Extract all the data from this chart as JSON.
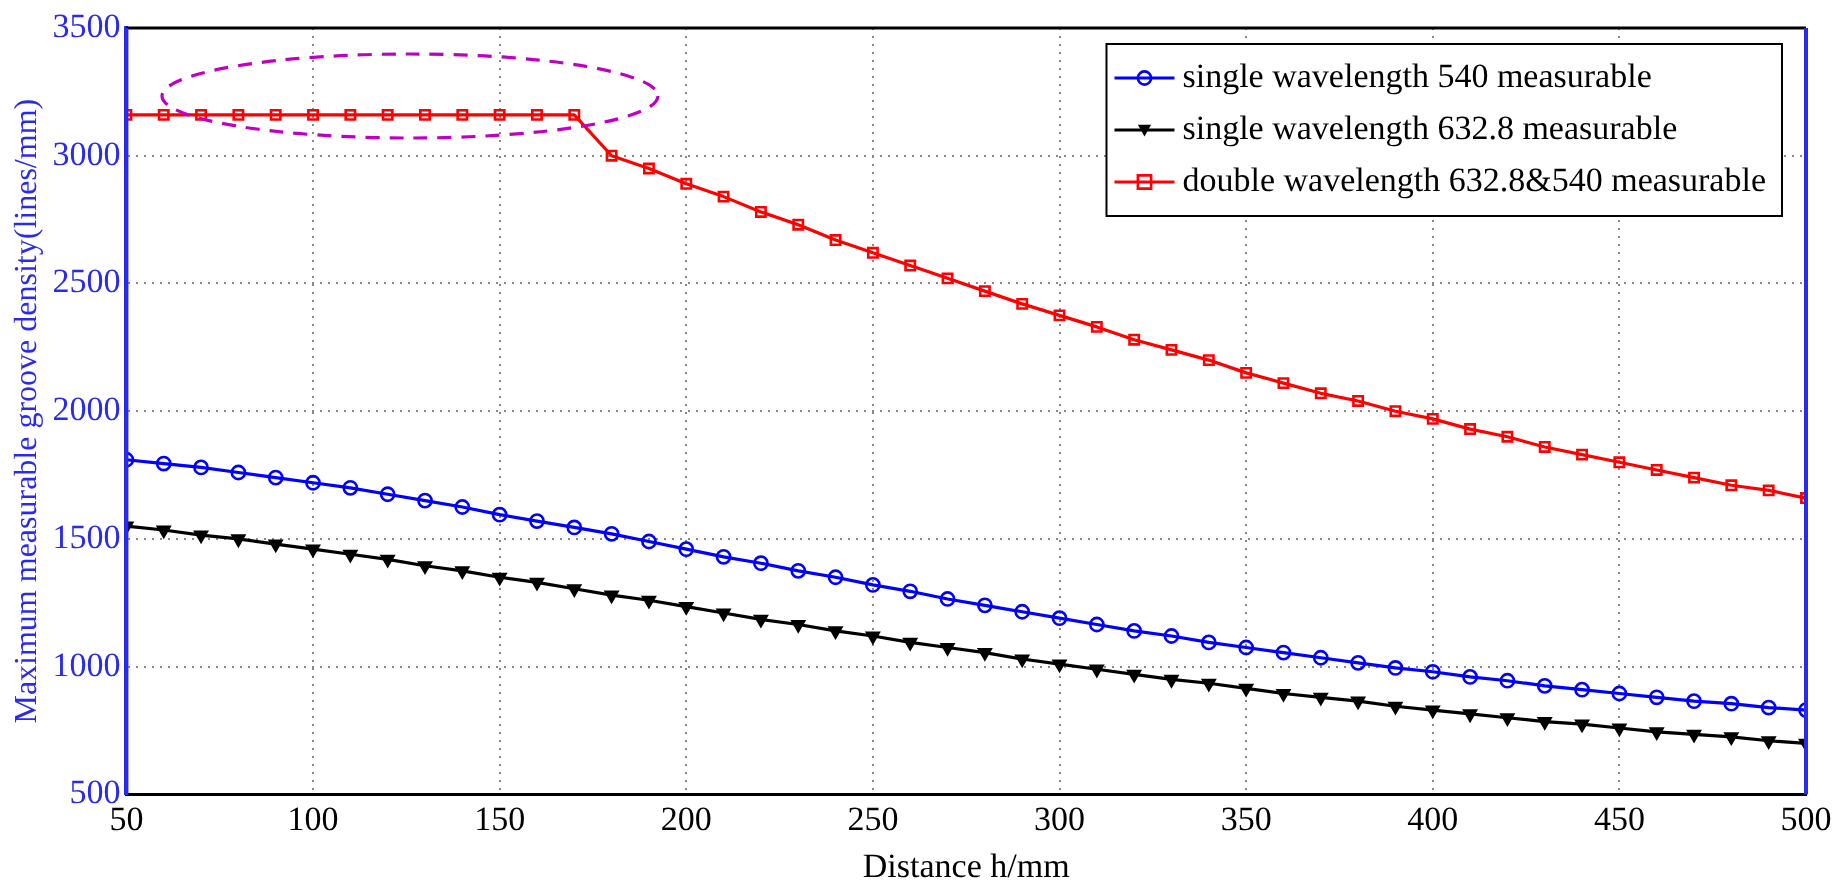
{
  "chart_data": {
    "type": "line",
    "xlabel": "Distance h/mm",
    "ylabel": "Maximum measurable groove density(lines/mm)",
    "x": [
      50,
      60,
      70,
      80,
      90,
      100,
      110,
      120,
      130,
      140,
      150,
      160,
      170,
      180,
      190,
      200,
      210,
      220,
      230,
      240,
      250,
      260,
      270,
      280,
      290,
      300,
      310,
      320,
      330,
      340,
      350,
      360,
      370,
      380,
      390,
      400,
      410,
      420,
      430,
      440,
      450,
      460,
      470,
      480,
      490,
      500
    ],
    "xlim": [
      50,
      500
    ],
    "xticks": [
      50,
      100,
      150,
      200,
      250,
      300,
      350,
      400,
      450,
      500
    ],
    "ylim": [
      500,
      3500
    ],
    "yticks": [
      500,
      1000,
      1500,
      2000,
      2500,
      3000,
      3500
    ],
    "grid": true,
    "legend": "top right",
    "line_style": "solid",
    "series": [
      {
        "name": "single wavelength 540 measurable",
        "color": "#0000ff",
        "marker": "circle",
        "values": [
          1810,
          1795,
          1780,
          1760,
          1740,
          1720,
          1700,
          1675,
          1650,
          1625,
          1595,
          1570,
          1545,
          1520,
          1490,
          1460,
          1430,
          1405,
          1375,
          1350,
          1320,
          1295,
          1265,
          1240,
          1215,
          1190,
          1165,
          1140,
          1120,
          1095,
          1075,
          1055,
          1035,
          1015,
          995,
          980,
          960,
          945,
          925,
          910,
          895,
          880,
          865,
          855,
          840,
          830
        ]
      },
      {
        "name": "single wavelength 632.8 measurable",
        "color": "#000000",
        "marker": "triangle",
        "values": [
          1550,
          1535,
          1515,
          1500,
          1480,
          1460,
          1440,
          1420,
          1395,
          1375,
          1350,
          1330,
          1305,
          1280,
          1260,
          1235,
          1210,
          1185,
          1165,
          1140,
          1120,
          1095,
          1075,
          1055,
          1030,
          1010,
          990,
          970,
          950,
          935,
          915,
          895,
          880,
          865,
          845,
          830,
          815,
          800,
          785,
          775,
          760,
          745,
          735,
          725,
          710,
          700
        ]
      },
      {
        "name": "double wavelength 632.8&540 measurable",
        "color": "#ff0000",
        "marker": "square",
        "values": [
          3160,
          3160,
          3160,
          3160,
          3160,
          3160,
          3160,
          3160,
          3160,
          3160,
          3160,
          3160,
          3160,
          3000,
          2950,
          2890,
          2840,
          2780,
          2730,
          2670,
          2620,
          2570,
          2520,
          2470,
          2420,
          2375,
          2330,
          2280,
          2240,
          2200,
          2150,
          2110,
          2070,
          2040,
          2000,
          1970,
          1930,
          1900,
          1860,
          1830,
          1800,
          1770,
          1740,
          1710,
          1690,
          1660
        ]
      }
    ]
  }
}
